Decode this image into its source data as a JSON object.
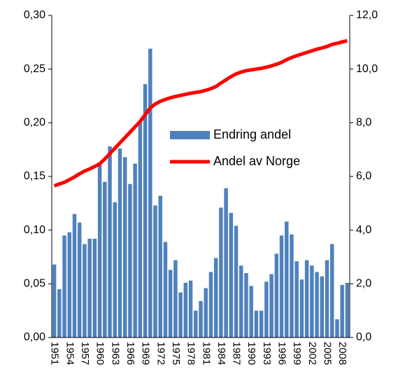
{
  "chart_data": {
    "type": "bar_line",
    "categories": [
      "1951",
      null,
      null,
      "1954",
      null,
      null,
      "1957",
      null,
      null,
      "1960",
      null,
      null,
      "1963",
      null,
      null,
      "1966",
      null,
      null,
      "1969",
      null,
      null,
      "1972",
      null,
      null,
      "1975",
      null,
      null,
      "1978",
      null,
      null,
      "1981",
      null,
      null,
      "1984",
      null,
      null,
      "1987",
      null,
      null,
      "1990",
      null,
      null,
      "1993",
      null,
      null,
      "1996",
      null,
      null,
      "1999",
      null,
      null,
      "2002",
      null,
      null,
      "2005",
      null,
      null,
      "2008",
      null
    ],
    "series": [
      {
        "name": "Endring andel",
        "color": "#4f81bd",
        "kind": "bar",
        "values": [
          0.068,
          0.045,
          0.095,
          0.098,
          0.115,
          0.107,
          0.087,
          0.092,
          0.092,
          0.163,
          0.145,
          0.178,
          0.126,
          0.176,
          0.168,
          0.143,
          0.162,
          0.201,
          0.236,
          0.269,
          0.123,
          0.132,
          0.089,
          0.063,
          0.072,
          0.042,
          0.051,
          0.053,
          0.025,
          0.034,
          0.046,
          0.061,
          0.074,
          0.121,
          0.139,
          0.116,
          0.104,
          0.067,
          0.06,
          0.048,
          0.025,
          0.025,
          0.052,
          0.059,
          0.078,
          0.095,
          0.108,
          0.096,
          0.071,
          0.054,
          0.072,
          0.067,
          0.061,
          0.057,
          0.072,
          0.087,
          0.017,
          0.049,
          0.051
        ]
      },
      {
        "name": "Andel av Norge",
        "color": "#ff0000",
        "kind": "line",
        "axis": "y2",
        "values": [
          5.65,
          5.72,
          5.78,
          5.88,
          5.98,
          6.1,
          6.2,
          6.28,
          6.37,
          6.47,
          6.65,
          6.85,
          7.05,
          7.25,
          7.45,
          7.65,
          7.85,
          8.05,
          8.3,
          8.55,
          8.7,
          8.8,
          8.87,
          8.93,
          8.98,
          9.02,
          9.06,
          9.1,
          9.13,
          9.16,
          9.21,
          9.27,
          9.35,
          9.48,
          9.6,
          9.72,
          9.82,
          9.89,
          9.94,
          9.97,
          10.0,
          10.03,
          10.07,
          10.12,
          10.18,
          10.25,
          10.35,
          10.43,
          10.5,
          10.56,
          10.62,
          10.68,
          10.74,
          10.79,
          10.84,
          10.92,
          10.96,
          11.01,
          11.06
        ]
      }
    ],
    "ylim": [
      0,
      0.3
    ],
    "yticks": [
      {
        "value": 0,
        "label": "0,00"
      },
      {
        "value": 0.05,
        "label": "0,05"
      },
      {
        "value": 0.1,
        "label": "0,10"
      },
      {
        "value": 0.15,
        "label": "0,15"
      },
      {
        "value": 0.2,
        "label": "0,20"
      },
      {
        "value": 0.25,
        "label": "0,25"
      },
      {
        "value": 0.3,
        "label": "0,30"
      }
    ],
    "y2lim": [
      0,
      12
    ],
    "y2ticks": [
      {
        "value": 0,
        "label": "0,0"
      },
      {
        "value": 2,
        "label": "2,0"
      },
      {
        "value": 4,
        "label": "4,0"
      },
      {
        "value": 6,
        "label": "6,0"
      },
      {
        "value": 8,
        "label": "8,0"
      },
      {
        "value": 10,
        "label": "10,0"
      },
      {
        "value": 12,
        "label": "12,0"
      }
    ]
  }
}
